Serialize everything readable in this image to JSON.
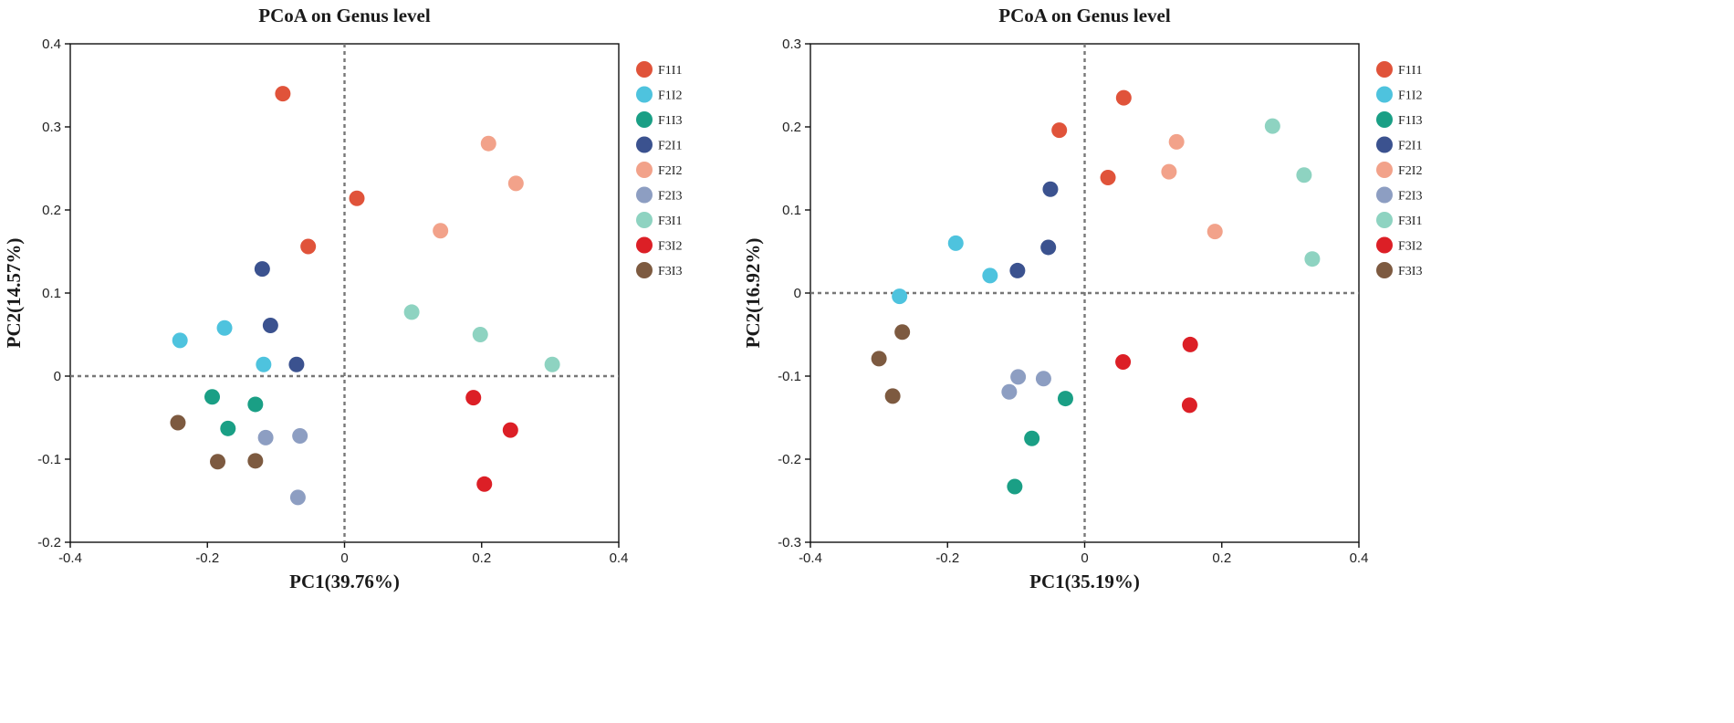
{
  "chart_data": [
    {
      "type": "scatter",
      "title": "PCoA on Genus level",
      "xlabel": "PC1(39.76%)",
      "ylabel": "PC2(14.57%)",
      "xlim": [
        -0.4,
        0.4
      ],
      "ylim": [
        -0.2,
        0.4
      ],
      "xticks": [
        -0.4,
        -0.2,
        0,
        0.2,
        0.4
      ],
      "yticks": [
        -0.2,
        -0.1,
        0,
        0.1,
        0.2,
        0.3,
        0.4
      ],
      "xtick_labels": [
        "-0.4",
        "-0.2",
        "0",
        "0.2",
        "0.4"
      ],
      "ytick_labels": [
        "-0.2",
        "-0.1",
        "0",
        "0.1",
        "0.2",
        "0.3",
        "0.4"
      ],
      "legend_position": "right",
      "series": [
        {
          "name": "F1I1",
          "color": "#e0533a",
          "points": [
            [
              -0.09,
              0.34
            ],
            [
              0.018,
              0.214
            ],
            [
              -0.053,
              0.156
            ]
          ]
        },
        {
          "name": "F1I2",
          "color": "#4ec3de",
          "points": [
            [
              -0.24,
              0.043
            ],
            [
              -0.175,
              0.058
            ],
            [
              -0.118,
              0.014
            ]
          ]
        },
        {
          "name": "F1I3",
          "color": "#1a9f85",
          "points": [
            [
              -0.193,
              -0.025
            ],
            [
              -0.13,
              -0.034
            ],
            [
              -0.17,
              -0.063
            ]
          ]
        },
        {
          "name": "F2I1",
          "color": "#3b528f",
          "points": [
            [
              -0.12,
              0.129
            ],
            [
              -0.108,
              0.061
            ],
            [
              -0.07,
              0.014
            ]
          ]
        },
        {
          "name": "F2I2",
          "color": "#f2a28a",
          "points": [
            [
              0.21,
              0.28
            ],
            [
              0.25,
              0.232
            ],
            [
              0.14,
              0.175
            ]
          ]
        },
        {
          "name": "F2I3",
          "color": "#8d9ec2",
          "points": [
            [
              -0.115,
              -0.074
            ],
            [
              -0.065,
              -0.072
            ],
            [
              -0.068,
              -0.146
            ]
          ]
        },
        {
          "name": "F3I1",
          "color": "#8ed3c1",
          "points": [
            [
              0.098,
              0.077
            ],
            [
              0.198,
              0.05
            ],
            [
              0.303,
              0.014
            ]
          ]
        },
        {
          "name": "F3I2",
          "color": "#dc1f26",
          "points": [
            [
              0.188,
              -0.026
            ],
            [
              0.242,
              -0.065
            ],
            [
              0.204,
              -0.13
            ]
          ]
        },
        {
          "name": "F3I3",
          "color": "#7d5a40",
          "points": [
            [
              -0.243,
              -0.056
            ],
            [
              -0.185,
              -0.103
            ],
            [
              -0.13,
              -0.102
            ]
          ]
        }
      ]
    },
    {
      "type": "scatter",
      "title": "PCoA on Genus level",
      "xlabel": "PC1(35.19%)",
      "ylabel": "PC2(16.92%)",
      "xlim": [
        -0.4,
        0.4
      ],
      "ylim": [
        -0.3,
        0.3
      ],
      "xticks": [
        -0.4,
        -0.2,
        0,
        0.2,
        0.4
      ],
      "yticks": [
        -0.3,
        -0.2,
        -0.1,
        0,
        0.1,
        0.2,
        0.3
      ],
      "xtick_labels": [
        "-0.4",
        "-0.2",
        "0",
        "0.2",
        "0.4"
      ],
      "ytick_labels": [
        "-0.3",
        "-0.2",
        "-0.1",
        "0",
        "0.1",
        "0.2",
        "0.3"
      ],
      "legend_position": "right",
      "series": [
        {
          "name": "F1I1",
          "color": "#e0533a",
          "points": [
            [
              0.057,
              0.235
            ],
            [
              -0.037,
              0.196
            ],
            [
              0.034,
              0.139
            ]
          ]
        },
        {
          "name": "F1I2",
          "color": "#4ec3de",
          "points": [
            [
              -0.188,
              0.06
            ],
            [
              -0.138,
              0.021
            ],
            [
              -0.27,
              -0.004
            ]
          ]
        },
        {
          "name": "F1I3",
          "color": "#1a9f85",
          "points": [
            [
              -0.028,
              -0.127
            ],
            [
              -0.077,
              -0.175
            ],
            [
              -0.102,
              -0.233
            ]
          ]
        },
        {
          "name": "F2I1",
          "color": "#3b528f",
          "points": [
            [
              -0.05,
              0.125
            ],
            [
              -0.053,
              0.055
            ],
            [
              -0.098,
              0.027
            ]
          ]
        },
        {
          "name": "F2I2",
          "color": "#f2a28a",
          "points": [
            [
              0.134,
              0.182
            ],
            [
              0.123,
              0.146
            ],
            [
              0.19,
              0.074
            ]
          ]
        },
        {
          "name": "F2I3",
          "color": "#8d9ec2",
          "points": [
            [
              -0.097,
              -0.101
            ],
            [
              -0.06,
              -0.103
            ],
            [
              -0.11,
              -0.119
            ]
          ]
        },
        {
          "name": "F3I1",
          "color": "#8ed3c1",
          "points": [
            [
              0.274,
              0.201
            ],
            [
              0.32,
              0.142
            ],
            [
              0.332,
              0.041
            ]
          ]
        },
        {
          "name": "F3I2",
          "color": "#dc1f26",
          "points": [
            [
              0.154,
              -0.062
            ],
            [
              0.056,
              -0.083
            ],
            [
              0.153,
              -0.135
            ]
          ]
        },
        {
          "name": "F3I3",
          "color": "#7d5a40",
          "points": [
            [
              -0.266,
              -0.047
            ],
            [
              -0.3,
              -0.079
            ],
            [
              -0.28,
              -0.124
            ]
          ]
        }
      ]
    }
  ]
}
